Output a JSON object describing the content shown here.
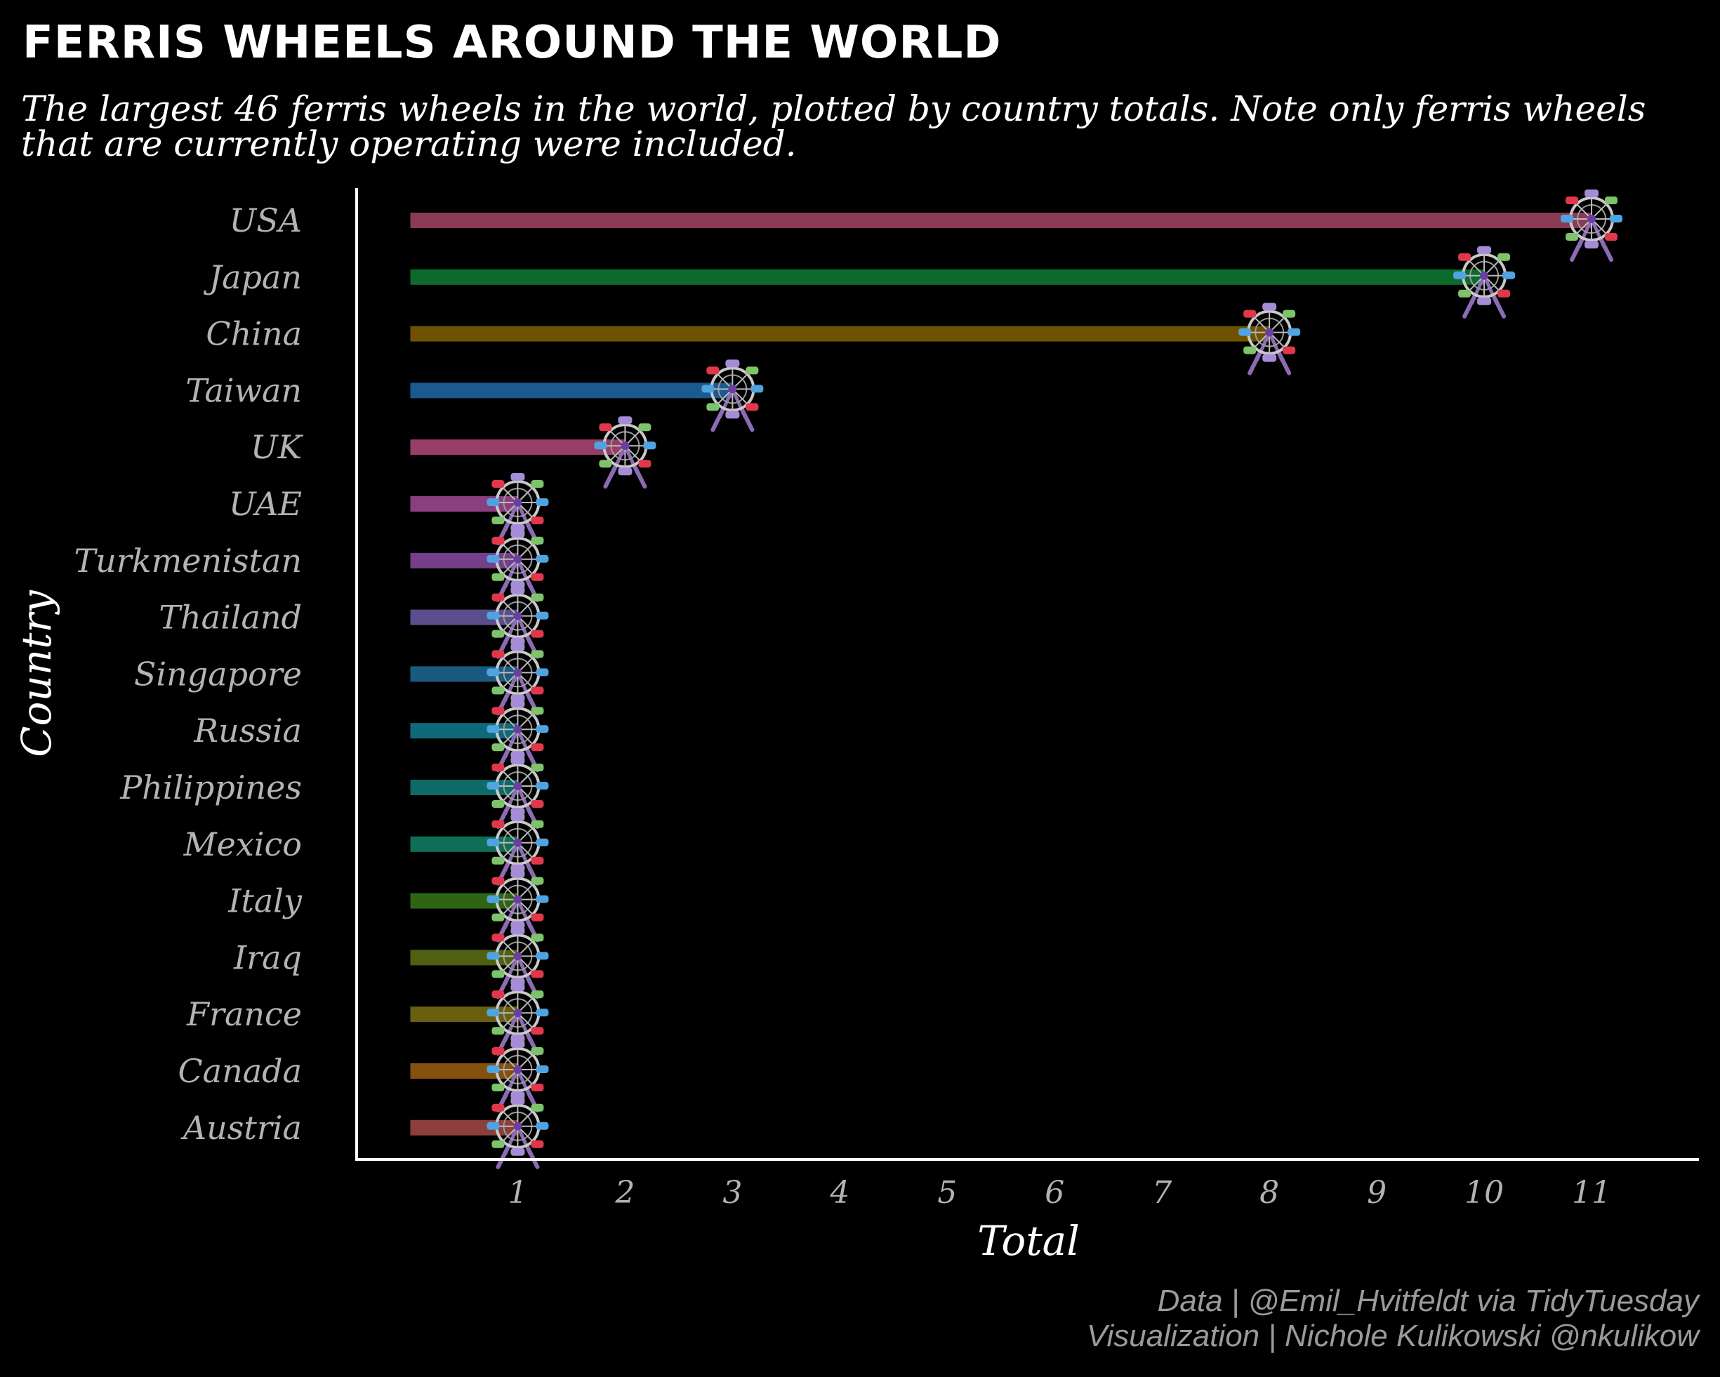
{
  "chart_data": {
    "type": "bar",
    "orientation": "horizontal",
    "title": "FERRIS WHEELS AROUND THE WORLD",
    "subtitle_lines": [
      "The largest 46 ferris wheels in the world, plotted by country totals. Note only ferris wheels",
      "that are currently operating were included."
    ],
    "xlabel": "Total",
    "ylabel": "Country",
    "x_ticks": [
      1,
      2,
      3,
      4,
      5,
      6,
      7,
      8,
      9,
      10,
      11
    ],
    "xlim": [
      -0.5,
      12
    ],
    "grid": false,
    "marker": "ferris-wheel-icon",
    "categories": [
      "USA",
      "Japan",
      "China",
      "Taiwan",
      "UK",
      "UAE",
      "Turkmenistan",
      "Thailand",
      "Singapore",
      "Russia",
      "Philippines",
      "Mexico",
      "Italy",
      "Iraq",
      "France",
      "Canada",
      "Austria"
    ],
    "values": [
      11,
      10,
      8,
      3,
      2,
      1,
      1,
      1,
      1,
      1,
      1,
      1,
      1,
      1,
      1,
      1,
      1
    ],
    "colors": [
      "#8b3a55",
      "#0b6a2c",
      "#6e5200",
      "#1a5a8e",
      "#963e68",
      "#8a3f80",
      "#74408a",
      "#5a4e8c",
      "#1a5a80",
      "#0d6a78",
      "#0d6a66",
      "#0f6e55",
      "#2e6412",
      "#4f6012",
      "#6a5e10",
      "#84510f",
      "#8c3f3c"
    ],
    "caption_lines": [
      "Data | @Emil_Hvitfeldt via TidyTuesday",
      "Visualization | Nichole Kulikowski @nkulikow"
    ]
  }
}
